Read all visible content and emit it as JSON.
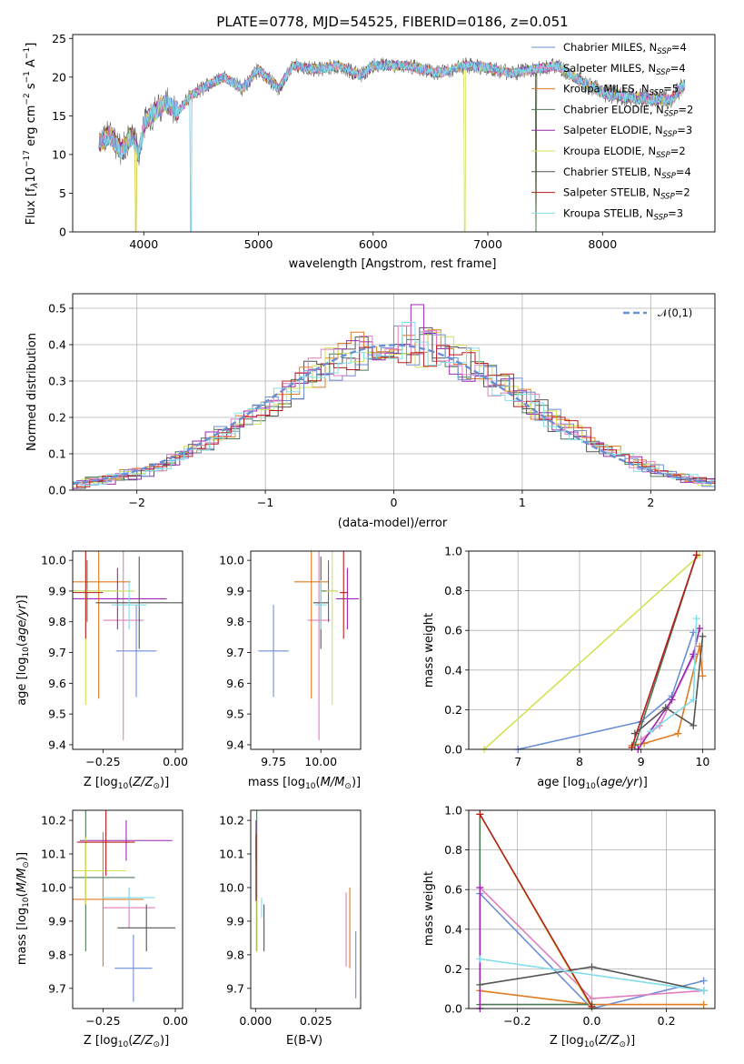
{
  "chart_data": [
    {
      "id": "spectrum",
      "type": "line",
      "title": "PLATE=0778, MJD=54525, FIBERID=0186, z=0.051",
      "xlabel": "wavelength [Angstrom, rest frame]",
      "ylabel": "Flux [f_λ 10^{-17} erg cm^{-2} s^{-1} A^{-1}]",
      "xlim": [
        3380,
        8980
      ],
      "ylim": [
        0,
        25.5
      ],
      "xticks": [
        4000,
        5000,
        6000,
        7000,
        8000
      ],
      "yticks": [
        0,
        5,
        10,
        15,
        20,
        25
      ],
      "grid": false,
      "legend_position": "right",
      "data_profile": {
        "wavelength": [
          3610,
          3700,
          3800,
          3900,
          3960,
          4000,
          4100,
          4200,
          4300,
          4400,
          4500,
          4700,
          4860,
          5000,
          5175,
          5300,
          5500,
          5700,
          5890,
          6000,
          6300,
          6563,
          6800,
          7000,
          7200,
          7400,
          7600,
          7800,
          8000,
          8200,
          8400,
          8600,
          8700
        ],
        "flux": [
          11.5,
          12.5,
          10.5,
          12.5,
          10,
          14,
          15.5,
          16.8,
          15.5,
          17.5,
          18.5,
          20,
          18.5,
          21,
          18.5,
          21.5,
          21,
          21.5,
          20.2,
          21.5,
          21.5,
          20.5,
          21.5,
          21.2,
          20.5,
          21,
          21.5,
          19.5,
          18,
          17.5,
          17.2,
          17,
          19
        ]
      },
      "series": [
        {
          "name": "Chabrier MILES, N_SSP=4",
          "color": "#6c8fd6"
        },
        {
          "name": "Salpeter MILES, N_SSP=4",
          "color": "#e07ec0"
        },
        {
          "name": "Kroupa MILES, N_SSP=5",
          "color": "#e07b21"
        },
        {
          "name": "Chabrier ELODIE, N_SSP=2",
          "color": "#4d7a54"
        },
        {
          "name": "Salpeter ELODIE, N_SSP=3",
          "color": "#9c27b0"
        },
        {
          "name": "Kroupa ELODIE, N_SSP=2",
          "color": "#d4e157"
        },
        {
          "name": "Chabrier STELIB, N_SSP=4",
          "color": "#555555"
        },
        {
          "name": "Salpeter STELIB, N_SSP=2",
          "color": "#b71c1c"
        },
        {
          "name": "Kroupa STELIB, N_SSP=3",
          "color": "#80deea"
        }
      ]
    },
    {
      "id": "residuals",
      "type": "line",
      "title": "",
      "xlabel": "(data-model)/error",
      "ylabel": "Normed distribution",
      "xlim": [
        -2.5,
        2.5
      ],
      "ylim": [
        0,
        0.54
      ],
      "xticks": [
        -2,
        -1,
        0,
        1,
        2
      ],
      "yticks": [
        0.0,
        0.1,
        0.2,
        0.3,
        0.4,
        0.5
      ],
      "grid": true,
      "legend": "𝒩(0,1)",
      "legend_position": "top-right",
      "bin_width": 0.1,
      "reference_curve": "gaussian mean 0 sigma 1"
    },
    {
      "id": "age-vs-Z",
      "type": "errorbar",
      "xlabel": "Z [log10(Z/Z⊙)]",
      "ylabel": "age  [log10(age/yr)]",
      "xlim": [
        -0.355,
        0.025
      ],
      "ylim": [
        9.385,
        10.03
      ],
      "xticks": [
        -0.25,
        0.0
      ],
      "xtick_labels": [
        "−0.25",
        "0.00"
      ],
      "yticks": [
        9.4,
        9.5,
        9.6,
        9.7,
        9.8,
        9.9,
        10.0
      ],
      "points": [
        {
          "series": 0,
          "x": -0.135,
          "y": 9.705,
          "xerr": 0.07,
          "yerr": 0.15
        },
        {
          "series": 1,
          "x": -0.18,
          "y": 9.805,
          "xerr": 0.07,
          "yerr": 0.39
        },
        {
          "series": 2,
          "x": -0.265,
          "y": 9.93,
          "xerr": 0.11,
          "yerr": 0.38
        },
        {
          "series": 3,
          "x": -0.305,
          "y": 9.9,
          "xerr": 0.1,
          "yerr": 0.1
        },
        {
          "series": 4,
          "x": -0.2,
          "y": 9.875,
          "xerr": 0.17,
          "yerr": 0.1
        },
        {
          "series": 5,
          "x": -0.31,
          "y": 9.9,
          "xerr": 0.17,
          "yerr": 0.37
        },
        {
          "series": 6,
          "x": -0.125,
          "y": 9.862,
          "xerr": 0.15,
          "yerr": 0.15
        },
        {
          "series": 7,
          "x": -0.31,
          "y": 9.895,
          "xerr": 0.06,
          "yerr": 0.15
        },
        {
          "series": 8,
          "x": -0.16,
          "y": 9.855,
          "xerr": 0.06,
          "yerr": 0.08
        }
      ]
    },
    {
      "id": "age-vs-mass",
      "type": "errorbar",
      "xlabel": "mass [log10(M/M⊙)]",
      "ylabel": "",
      "xlim": [
        9.63,
        10.21
      ],
      "ylim": [
        9.385,
        10.03
      ],
      "xticks": [
        9.75,
        10.0
      ],
      "xtick_labels": [
        "9.75",
        "10.00"
      ],
      "yticks": [
        9.4,
        9.5,
        9.6,
        9.7,
        9.8,
        9.9,
        10.0
      ],
      "points": [
        {
          "series": 0,
          "x": 9.75,
          "y": 9.705,
          "xerr": 0.08,
          "yerr": 0.15
        },
        {
          "series": 1,
          "x": 9.99,
          "y": 9.805,
          "xerr": 0.06,
          "yerr": 0.39
        },
        {
          "series": 2,
          "x": 9.95,
          "y": 9.93,
          "xerr": 0.09,
          "yerr": 0.38
        },
        {
          "series": 3,
          "x": 10.04,
          "y": 9.9,
          "xerr": 0.04,
          "yerr": 0.1
        },
        {
          "series": 4,
          "x": 10.14,
          "y": 9.875,
          "xerr": 0.06,
          "yerr": 0.1
        },
        {
          "series": 5,
          "x": 10.06,
          "y": 9.9,
          "xerr": 0.03,
          "yerr": 0.37
        },
        {
          "series": 6,
          "x": 10.0,
          "y": 9.862,
          "xerr": 0.04,
          "yerr": 0.15
        },
        {
          "series": 7,
          "x": 10.12,
          "y": 9.895,
          "xerr": 0.02,
          "yerr": 0.15
        },
        {
          "series": 8,
          "x": 10.0,
          "y": 9.855,
          "xerr": 0.03,
          "yerr": 0.08
        }
      ]
    },
    {
      "id": "mass-weight-vs-age",
      "type": "line",
      "xlabel": "age  [log10(age/yr)]",
      "ylabel": "mass weight",
      "xlim": [
        6.2,
        10.2
      ],
      "ylim": [
        0,
        1
      ],
      "xticks": [
        7,
        8,
        9,
        10
      ],
      "yticks": [
        0.0,
        0.2,
        0.4,
        0.6,
        0.8,
        1.0
      ],
      "grid": true,
      "series_points": [
        {
          "series": 0,
          "x": [
            7.0,
            9.0,
            9.5,
            9.85
          ],
          "y": [
            0.0,
            0.14,
            0.27,
            0.59
          ]
        },
        {
          "series": 1,
          "x": [
            9.0,
            9.3,
            9.85,
            9.95
          ],
          "y": [
            0.05,
            0.12,
            0.47,
            0.61
          ]
        },
        {
          "series": 2,
          "x": [
            8.85,
            9.05,
            9.6,
            9.95,
            10.0
          ],
          "y": [
            0.02,
            0.03,
            0.08,
            0.52,
            0.37
          ]
        },
        {
          "series": 3,
          "x": [
            8.9,
            9.9
          ],
          "y": [
            0.02,
            0.98
          ]
        },
        {
          "series": 4,
          "x": [
            8.95,
            9.5,
            9.85,
            9.95
          ],
          "y": [
            0.0,
            0.25,
            0.48,
            0.61
          ]
        },
        {
          "series": 5,
          "x": [
            6.45,
            9.95
          ],
          "y": [
            0.0,
            0.98
          ]
        },
        {
          "series": 6,
          "x": [
            8.9,
            9.4,
            9.85,
            10.0
          ],
          "y": [
            0.08,
            0.21,
            0.12,
            0.57
          ]
        },
        {
          "series": 7,
          "x": [
            8.85,
            9.9
          ],
          "y": [
            0.01,
            0.98
          ]
        },
        {
          "series": 8,
          "x": [
            9.15,
            9.85,
            9.9
          ],
          "y": [
            0.09,
            0.25,
            0.66
          ]
        }
      ]
    },
    {
      "id": "mass-vs-Z",
      "type": "errorbar",
      "xlabel": "Z [log10(Z/Z⊙)]",
      "ylabel": "mass [log10(M/M⊙)]",
      "xlim": [
        -0.355,
        0.025
      ],
      "ylim": [
        9.64,
        10.23
      ],
      "xticks": [
        -0.25,
        0.0
      ],
      "xtick_labels": [
        "−0.25",
        "0.00"
      ],
      "yticks": [
        9.7,
        9.8,
        9.9,
        10.0,
        10.1,
        10.2
      ],
      "points": [
        {
          "series": 0,
          "x": -0.145,
          "y": 9.76,
          "xerr": 0.065,
          "yerr": 0.1
        },
        {
          "series": 1,
          "x": -0.16,
          "y": 9.94,
          "xerr": 0.09,
          "yerr": 0.06
        },
        {
          "series": 2,
          "x": -0.25,
          "y": 9.965,
          "xerr": 0.14,
          "yerr": 0.2
        },
        {
          "series": 3,
          "x": -0.31,
          "y": 10.03,
          "xerr": 0.17,
          "yerr": 0.22
        },
        {
          "series": 4,
          "x": -0.17,
          "y": 10.14,
          "xerr": 0.16,
          "yerr": 0.06
        },
        {
          "series": 5,
          "x": -0.31,
          "y": 10.05,
          "xerr": 0.14,
          "yerr": 0.1
        },
        {
          "series": 6,
          "x": -0.1,
          "y": 9.88,
          "xerr": 0.1,
          "yerr": 0.07
        },
        {
          "series": 7,
          "x": -0.24,
          "y": 10.135,
          "xerr": 0.1,
          "yerr": 0.1
        },
        {
          "series": 8,
          "x": -0.16,
          "y": 9.97,
          "xerr": 0.09,
          "yerr": 0.03
        }
      ]
    },
    {
      "id": "mass-vs-ebv",
      "type": "errorbar",
      "xlabel": "E(B-V)",
      "ylabel": "",
      "xlim": [
        -0.002,
        0.0435
      ],
      "ylim": [
        9.64,
        10.23
      ],
      "xticks": [
        0.0,
        0.025
      ],
      "xtick_labels": [
        "0.000",
        "0.025"
      ],
      "yticks": [
        9.7,
        9.8,
        9.9,
        10.0,
        10.1,
        10.2
      ],
      "points": [
        {
          "series": 0,
          "x": 0.0415,
          "y": 9.77,
          "yerr": 0.1
        },
        {
          "series": 1,
          "x": 0.0375,
          "y": 9.875,
          "yerr": 0.11
        },
        {
          "series": 2,
          "x": 0.039,
          "y": 9.88,
          "yerr": 0.12
        },
        {
          "series": 3,
          "x": 0.0005,
          "y": 10.03,
          "yerr": 0.22
        },
        {
          "series": 4,
          "x": 0.0002,
          "y": 10.14,
          "yerr": 0.06
        },
        {
          "series": 5,
          "x": 0.0003,
          "y": 9.89,
          "yerr": 0.08
        },
        {
          "series": 6,
          "x": 0.0035,
          "y": 9.88,
          "yerr": 0.07
        },
        {
          "series": 7,
          "x": 0.0002,
          "y": 10.06,
          "yerr": 0.1
        },
        {
          "series": 8,
          "x": 0.0025,
          "y": 9.94,
          "yerr": 0.03
        }
      ]
    },
    {
      "id": "mass-weight-vs-Z",
      "type": "line",
      "xlabel": "Z [log10(Z/Z⊙)]",
      "ylabel": "mass weight",
      "xlim": [
        -0.33,
        0.33
      ],
      "ylim": [
        0,
        1
      ],
      "xticks": [
        -0.2,
        0.0,
        0.2
      ],
      "xtick_labels": [
        "−0.2",
        "0.0",
        "0.2"
      ],
      "yticks": [
        0.0,
        0.2,
        0.4,
        0.6,
        0.8,
        1.0
      ],
      "grid": true,
      "series_points": [
        {
          "series": 0,
          "x": [
            -0.3,
            0.0,
            0.3
          ],
          "y": [
            0.58,
            0.0,
            0.14
          ]
        },
        {
          "series": 1,
          "x": [
            -0.3,
            0.0,
            0.3
          ],
          "y": [
            0.61,
            0.05,
            0.09
          ]
        },
        {
          "series": 2,
          "x": [
            -0.3,
            0.0,
            0.3
          ],
          "y": [
            0.09,
            0.02,
            0.02
          ]
        },
        {
          "series": 3,
          "x": [
            -0.3,
            -0.3,
            0.0
          ],
          "y": [
            0.98,
            0.02,
            0.02
          ]
        },
        {
          "series": 4,
          "x": [
            -0.3,
            -0.3
          ],
          "y": [
            0.61,
            0.0
          ]
        },
        {
          "series": 5,
          "x": [
            -0.3,
            0.0
          ],
          "y": [
            0.98,
            0.0
          ]
        },
        {
          "series": 6,
          "x": [
            -0.3,
            0.0,
            0.3
          ],
          "y": [
            0.12,
            0.21,
            0.09
          ]
        },
        {
          "series": 7,
          "x": [
            -0.3,
            0.0
          ],
          "y": [
            0.98,
            0.01
          ]
        },
        {
          "series": 8,
          "x": [
            -0.3,
            0.3
          ],
          "y": [
            0.25,
            0.09
          ]
        }
      ]
    }
  ]
}
